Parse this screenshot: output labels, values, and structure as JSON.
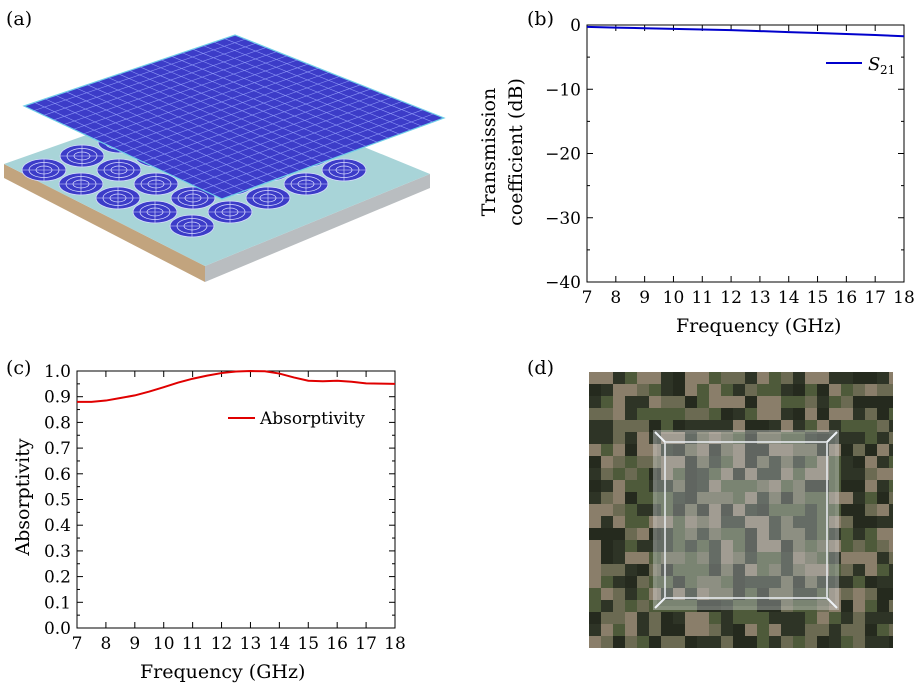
{
  "panel_labels": {
    "a": "(a)",
    "b": "(b)",
    "c": "(c)",
    "d": "(d)"
  },
  "colors": {
    "s21_line": "#0000cc",
    "absorptivity_line": "#e00000",
    "metal_blue": "#3c3cc8",
    "substrate": "#a8d4d8",
    "substrate_side": "#c2a47e",
    "camo_dark": "#2e3426",
    "camo_olive": "#4e5a3a",
    "camo_tan": "#8a7e6a"
  },
  "chart_data": [
    {
      "panel": "b",
      "type": "line",
      "xlabel": "Frequency (GHz)",
      "ylabel_line1": "Transmission",
      "ylabel_line2": "coefficient (dB)",
      "xlim": [
        7,
        18
      ],
      "ylim": [
        -40,
        0
      ],
      "xticks": [
        7,
        8,
        9,
        10,
        11,
        12,
        13,
        14,
        15,
        16,
        17,
        18
      ],
      "yticks": [
        0,
        -10,
        -20,
        -30,
        -40
      ],
      "ytick_labels": [
        "0",
        "−10",
        "−20",
        "−30",
        "−40"
      ],
      "legend": {
        "position": "top-right",
        "label_main": "S",
        "label_sub": "21"
      },
      "series": [
        {
          "name": "S21",
          "x": [
            7,
            8,
            9,
            10,
            11,
            12,
            13,
            14,
            15,
            16,
            17,
            18
          ],
          "y": [
            -0.3,
            -0.4,
            -0.5,
            -0.6,
            -0.7,
            -0.8,
            -0.95,
            -1.1,
            -1.25,
            -1.4,
            -1.55,
            -1.75
          ]
        }
      ]
    },
    {
      "panel": "c",
      "type": "line",
      "xlabel": "Frequency (GHz)",
      "ylabel": "Absorptivity",
      "xlim": [
        7,
        18
      ],
      "ylim": [
        0,
        1
      ],
      "xticks": [
        7,
        8,
        9,
        10,
        11,
        12,
        13,
        14,
        15,
        16,
        17,
        18
      ],
      "yticks": [
        0.0,
        0.1,
        0.2,
        0.3,
        0.4,
        0.5,
        0.6,
        0.7,
        0.8,
        0.9,
        1.0
      ],
      "ytick_labels": [
        "0.0",
        "0.1",
        "0.2",
        "0.3",
        "0.4",
        "0.5",
        "0.6",
        "0.7",
        "0.8",
        "0.9",
        "1.0"
      ],
      "legend": {
        "position": "top-right",
        "label": "Absorptivity"
      },
      "series": [
        {
          "name": "Absorptivity",
          "x": [
            7,
            7.5,
            8,
            8.5,
            9,
            9.5,
            10,
            10.5,
            11,
            11.5,
            12,
            12.5,
            13,
            13.5,
            14,
            14.5,
            15,
            15.5,
            16,
            16.5,
            17,
            17.5,
            18
          ],
          "y": [
            0.88,
            0.88,
            0.885,
            0.895,
            0.905,
            0.92,
            0.937,
            0.955,
            0.97,
            0.982,
            0.992,
            0.998,
            1.0,
            0.999,
            0.99,
            0.975,
            0.962,
            0.96,
            0.962,
            0.958,
            0.952,
            0.951,
            0.95
          ]
        }
      ]
    }
  ]
}
